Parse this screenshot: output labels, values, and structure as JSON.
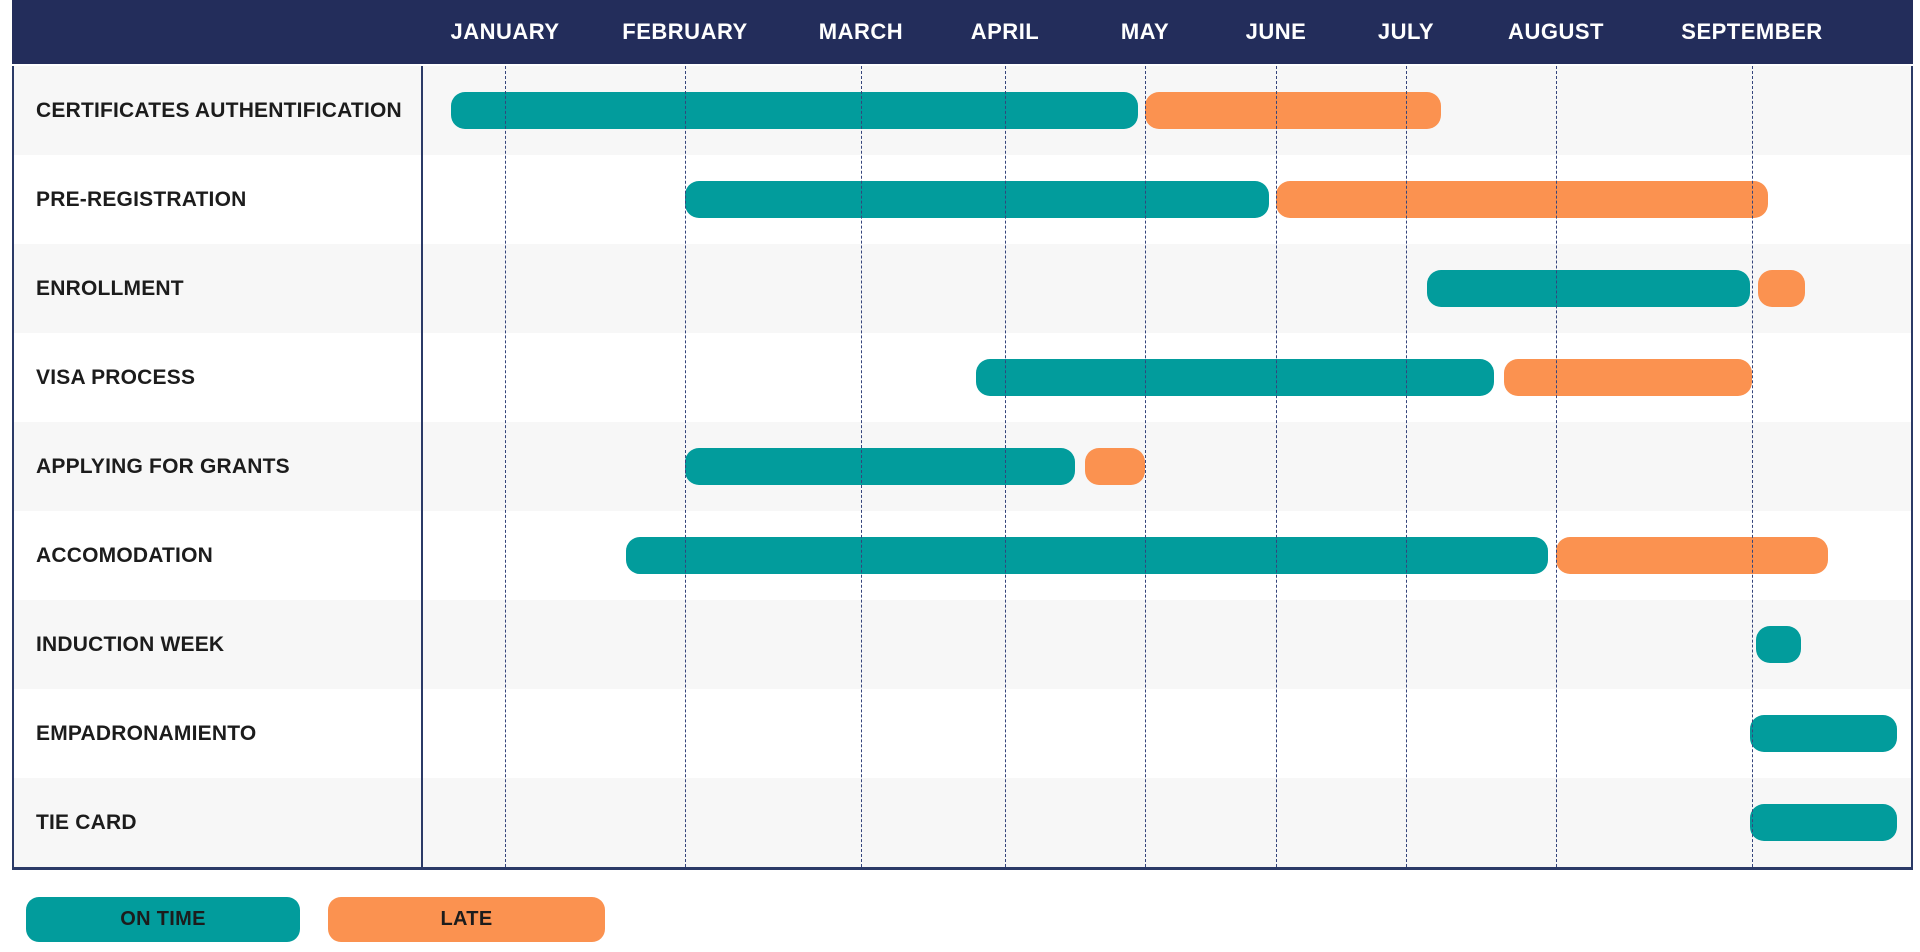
{
  "colors": {
    "on_time": "#029c9c",
    "late": "#fb9250",
    "header_bg": "#232d5b",
    "gridline": "#35457c",
    "table_border": "#2b3a67",
    "row_stripe": "#f7f7f7",
    "label_text": "#1c1c1c",
    "month_text": "#ffffff",
    "legend_text": "#1c1c1c"
  },
  "chart_data": {
    "type": "gantt",
    "title": "",
    "x_axis": {
      "unit": "months",
      "labels": [
        "JANUARY",
        "FEBRUARY",
        "MARCH",
        "APRIL",
        "MAY",
        "JUNE",
        "JULY",
        "AUGUST",
        "SEPTEMBER"
      ],
      "scale_note": "Timeline in month units: 0 = start of January, 9 = end of September. Dotted gridlines mark month centers (n + 0.5). Column spacing is non-uniform as drawn.",
      "grid": true
    },
    "tasks": [
      {
        "label": "CERTIFICATES AUTHENTIFICATION",
        "segments": [
          {
            "status": "on_time",
            "start_month": 0.2,
            "end_month": 4.45
          },
          {
            "status": "late",
            "start_month": 4.5,
            "end_month": 6.73
          }
        ]
      },
      {
        "label": "PRE-REGISTRATION",
        "segments": [
          {
            "status": "on_time",
            "start_month": 1.5,
            "end_month": 5.45
          },
          {
            "status": "late",
            "start_month": 5.5,
            "end_month": 8.58
          }
        ]
      },
      {
        "label": "ENROLLMENT",
        "segments": [
          {
            "status": "on_time",
            "start_month": 6.64,
            "end_month": 8.49
          },
          {
            "status": "late",
            "start_month": 8.53,
            "end_month": 8.77
          }
        ]
      },
      {
        "label": "VISA PROCESS",
        "segments": [
          {
            "status": "on_time",
            "start_month": 3.3,
            "end_month": 7.09
          },
          {
            "status": "late",
            "start_month": 7.15,
            "end_month": 8.5
          }
        ]
      },
      {
        "label": "APPLYING FOR GRANTS",
        "segments": [
          {
            "status": "on_time",
            "start_month": 1.5,
            "end_month": 4.0
          },
          {
            "status": "late",
            "start_month": 4.07,
            "end_month": 4.5
          }
        ]
      },
      {
        "label": "ACCOMODATION",
        "segments": [
          {
            "status": "on_time",
            "start_month": 1.17,
            "end_month": 7.45
          },
          {
            "status": "late",
            "start_month": 7.5,
            "end_month": 8.89
          }
        ]
      },
      {
        "label": "INDUCTION WEEK",
        "segments": [
          {
            "status": "on_time",
            "start_month": 8.52,
            "end_month": 8.75
          }
        ]
      },
      {
        "label": "EMPADRONAMIENTO",
        "segments": [
          {
            "status": "on_time",
            "start_month": 8.49,
            "end_month": 9.24
          }
        ]
      },
      {
        "label": "TIE CARD",
        "segments": [
          {
            "status": "on_time",
            "start_month": 8.49,
            "end_month": 9.24
          }
        ]
      }
    ],
    "legend": [
      {
        "label": "ON TIME",
        "status": "on_time",
        "color": "#029c9c"
      },
      {
        "label": "LATE",
        "status": "late",
        "color": "#fb9250"
      }
    ],
    "legend_position": "bottom-left"
  }
}
